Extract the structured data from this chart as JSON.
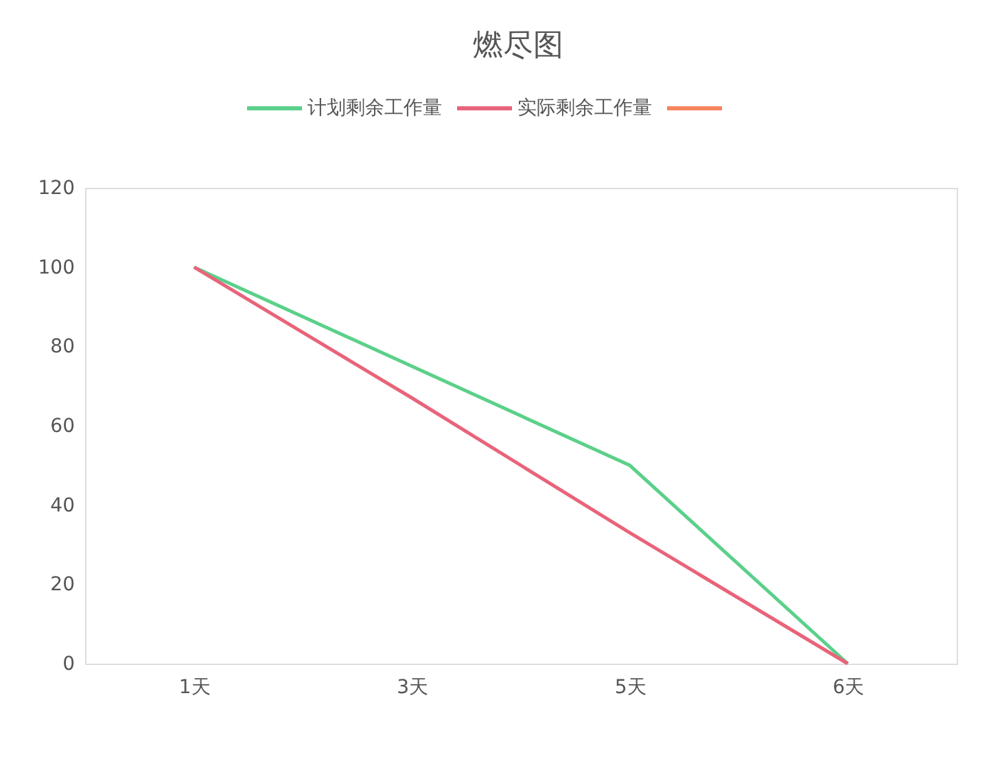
{
  "chart_data": {
    "type": "line",
    "title": "燃尽图",
    "categories": [
      "1天",
      "3天",
      "5天",
      "6天"
    ],
    "series": [
      {
        "name": "计划剩余工作量",
        "color": "#5bd08a",
        "values": [
          100,
          75,
          50,
          0
        ]
      },
      {
        "name": "实际剩余工作量",
        "color": "#e8647a",
        "values": [
          100,
          67,
          33,
          0
        ]
      },
      {
        "color": "#f7845e",
        "values": [
          null,
          null,
          null,
          null
        ]
      }
    ],
    "ylim": [
      0,
      120
    ],
    "yticks": [
      0,
      20,
      40,
      60,
      80,
      100,
      120
    ],
    "grid": false,
    "legend": "top",
    "marker": "none",
    "line_style": "solid"
  }
}
